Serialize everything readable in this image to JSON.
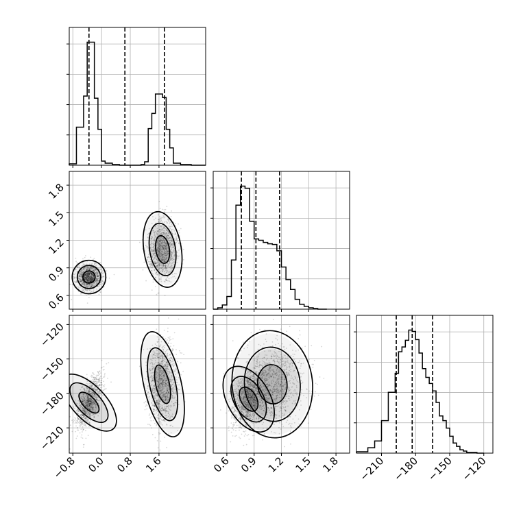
{
  "chart_data": {
    "type": "corner",
    "parameters": [
      {
        "range": [
          -0.9,
          2.9
        ],
        "ticks": [
          -0.8,
          0.0,
          0.8,
          1.6
        ],
        "tick_labels": [
          "−0.8",
          "0.0",
          "0.8",
          "1.6"
        ],
        "quantiles": [
          -0.35,
          0.65,
          1.75
        ],
        "hist_bins": [
          -0.9,
          -0.7,
          -0.5,
          -0.4,
          -0.3,
          -0.2,
          -0.1,
          0.0,
          0.1,
          0.3,
          0.5,
          1.1,
          1.2,
          1.3,
          1.4,
          1.5,
          1.6,
          1.7,
          1.8,
          1.9,
          2.0,
          2.2,
          2.5,
          2.9
        ],
        "hist_values": [
          2,
          55,
          100,
          178,
          178,
          97,
          52,
          6,
          3,
          1,
          0,
          1,
          5,
          53,
          75,
          103,
          103,
          98,
          52,
          25,
          3,
          1,
          0
        ]
      },
      {
        "range": [
          0.45,
          1.95
        ],
        "ticks": [
          0.6,
          0.9,
          1.2,
          1.5,
          1.8
        ],
        "tick_labels": [
          "0.6",
          "0.9",
          "1.2",
          "1.5",
          "1.8"
        ],
        "quantiles": [
          0.76,
          0.92,
          1.18
        ],
        "hist_bins": [
          0.45,
          0.5,
          0.55,
          0.6,
          0.65,
          0.7,
          0.75,
          0.8,
          0.85,
          0.9,
          0.95,
          1.0,
          1.05,
          1.1,
          1.15,
          1.2,
          1.25,
          1.3,
          1.35,
          1.4,
          1.45,
          1.5,
          1.55,
          1.6,
          1.65,
          1.7
        ],
        "hist_values": [
          0,
          2,
          6,
          18,
          70,
          148,
          175,
          172,
          125,
          100,
          98,
          95,
          93,
          92,
          83,
          60,
          42,
          28,
          14,
          7,
          4,
          2,
          1,
          0,
          0
        ]
      },
      {
        "range": [
          -232,
          -112
        ],
        "ticks": [
          -210,
          -180,
          -150,
          -120
        ],
        "tick_labels": [
          "−210",
          "−180",
          "−150",
          "−120"
        ],
        "quantiles": [
          -197,
          -183,
          -165
        ],
        "hist_bins": [
          -232,
          -222,
          -216,
          -210,
          -204,
          -198,
          -195,
          -192,
          -189,
          -186,
          -183,
          -180,
          -177,
          -174,
          -171,
          -168,
          -165,
          -162,
          -159,
          -156,
          -153,
          -150,
          -147,
          -144,
          -141,
          -138,
          -135,
          -132,
          -126,
          -120
        ],
        "hist_values": [
          2,
          8,
          18,
          48,
          90,
          118,
          150,
          157,
          167,
          182,
          180,
          168,
          148,
          125,
          112,
          103,
          92,
          75,
          55,
          48,
          37,
          25,
          15,
          10,
          5,
          3,
          1,
          1,
          0
        ]
      }
    ],
    "panels_2d": [
      {
        "x_param": 0,
        "y_param": 1,
        "modes": [
          {
            "x": -0.35,
            "y": 0.8,
            "sx": 0.18,
            "sy": 0.07,
            "rho": 0.0
          },
          {
            "x": 1.7,
            "y": 1.1,
            "sx": 0.2,
            "sy": 0.16,
            "rho": 0.1
          }
        ],
        "contour_levels": [
          0.3,
          0.6,
          0.85
        ]
      },
      {
        "x_param": 0,
        "y_param": 2,
        "modes": [
          {
            "x": -0.35,
            "y": -188,
            "sx": 0.18,
            "sy": 12,
            "rho": 0.65
          },
          {
            "x": 1.7,
            "y": -172,
            "sx": 0.2,
            "sy": 18,
            "rho": 0.1
          }
        ],
        "contour_levels": [
          0.3,
          0.6,
          0.85
        ]
      },
      {
        "x_param": 1,
        "y_param": 2,
        "modes": [
          {
            "x": 0.84,
            "y": -185,
            "sx": 0.09,
            "sy": 12,
            "rho": 0.45
          },
          {
            "x": 1.1,
            "y": -172,
            "sx": 0.17,
            "sy": 18,
            "rho": 0.1
          }
        ],
        "contour_levels": [
          0.3,
          0.6,
          0.85
        ]
      }
    ]
  }
}
